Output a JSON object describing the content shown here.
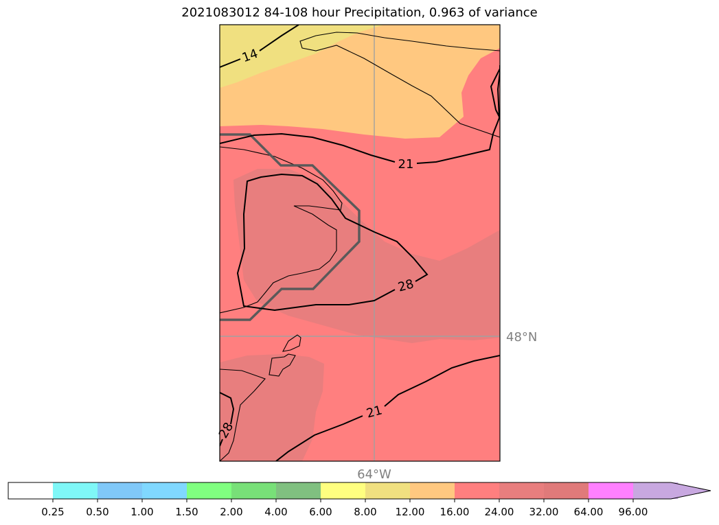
{
  "title": "2021083012 84-108 hour Precipitation, 0.963 of variance",
  "gridlines": {
    "lon_label": "64°W",
    "lat_label": "48°N",
    "label_color": "#808080"
  },
  "contour_labels": [
    "14",
    "21",
    "21",
    "28",
    "28"
  ],
  "fill_colors": {
    "band_8_12": "#f0e080",
    "band_12_16": "#ffc880",
    "band_16_24": "#ff7f7f",
    "band_24_32": "#e87e7e"
  },
  "colorbar": {
    "colors": [
      "#ffffff",
      "#7ff7f7",
      "#80c8f8",
      "#80d8ff",
      "#80ff80",
      "#78e078",
      "#80c080",
      "#ffff80",
      "#f0e080",
      "#ffc880",
      "#ff7f7f",
      "#e87e7e",
      "#e07a7a",
      "#ff80ff",
      "#c8a8e0"
    ],
    "tick_labels": [
      "0.25",
      "0.50",
      "1.00",
      "1.50",
      "2.00",
      "4.00",
      "6.00",
      "8.00",
      "12.00",
      "16.00",
      "24.00",
      "32.00",
      "64.00",
      "96.00"
    ]
  }
}
